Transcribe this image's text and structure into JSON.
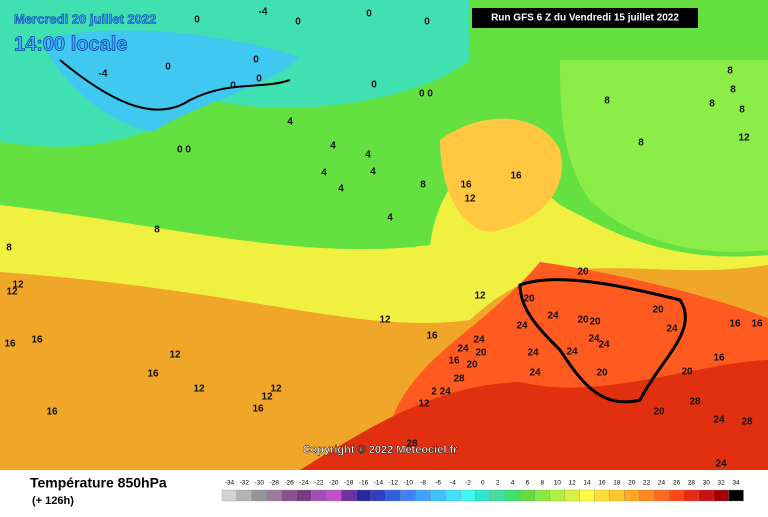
{
  "header": {
    "date": "Mercredi 20 juillet 2022",
    "time": "14:00 locale",
    "run": "Run GFS 6 Z du Vendredi 15 juillet 2022"
  },
  "map": {
    "labels": [
      "0",
      "-4",
      "0",
      "0",
      "0",
      "-4",
      "0",
      "0",
      "0",
      "0",
      "0",
      "0 0",
      "0 0",
      "4",
      "4",
      "4",
      "4",
      "4",
      "4",
      "4",
      "8",
      "16",
      "12",
      "16",
      "8",
      "8",
      "12",
      "12",
      "12",
      "12",
      "16",
      "24",
      "24",
      "20",
      "16",
      "20",
      "28",
      "2 24",
      "12",
      "12",
      "16",
      "12",
      "12",
      "12",
      "16",
      "16",
      "16",
      "16",
      "24",
      "20",
      "24",
      "20",
      "20",
      "20",
      "24",
      "24",
      "24",
      "24",
      "24",
      "20",
      "20",
      "24",
      "16",
      "16",
      "16",
      "20",
      "20",
      "28",
      "28",
      "24",
      "24",
      "28",
      "8",
      "8",
      "8",
      "8",
      "8",
      "12",
      "8"
    ],
    "copyright": "Copyright © 2022 Meteociel.fr"
  },
  "legend": {
    "title": "Température 850hPa",
    "lead": "(+ 126h)",
    "ticks": [
      -34,
      -32,
      -30,
      -28,
      -26,
      -24,
      -22,
      -20,
      -18,
      -16,
      -14,
      -12,
      -10,
      -8,
      -6,
      -4,
      -2,
      0,
      2,
      4,
      6,
      8,
      10,
      12,
      14,
      16,
      18,
      20,
      22,
      24,
      26,
      28,
      30,
      32,
      34
    ],
    "colors": [
      "#d2d2d2",
      "#b4b4b4",
      "#969696",
      "#a078a0",
      "#8c508c",
      "#783c82",
      "#a050b4",
      "#be50c8",
      "#7030a0",
      "#2828a0",
      "#3040c0",
      "#3060e0",
      "#4080ff",
      "#40a0ff",
      "#40c0ff",
      "#40e0ff",
      "#40f8f0",
      "#30e8c8",
      "#40e0a0",
      "#40e070",
      "#60e040",
      "#88ec40",
      "#b0f040",
      "#d8f040",
      "#ffff40",
      "#ffe030",
      "#ffc828",
      "#ffa820",
      "#ff8820",
      "#ff6820",
      "#ff4818",
      "#e82810",
      "#c81010",
      "#a00000",
      "#000000"
    ]
  }
}
